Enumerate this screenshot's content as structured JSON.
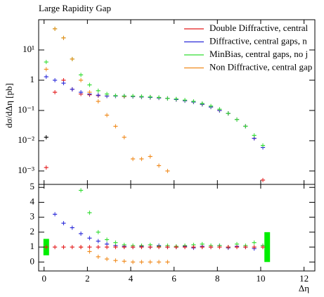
{
  "chart_data": [
    {
      "type": "line",
      "title": "Large Rapidity Gap",
      "ylabel": "dσ/dΔη [pb]",
      "log_y": true,
      "xlim": [
        -0.25,
        12.5
      ],
      "ylim": [
        0.00036,
        100
      ],
      "yticks": [
        {
          "value": 0.001,
          "label": "10⁻³"
        },
        {
          "value": 0.01,
          "label": "10⁻²"
        },
        {
          "value": 0.1,
          "label": "10⁻¹"
        },
        1,
        {
          "value": 10,
          "label": "10¹"
        }
      ],
      "legend": "top-right",
      "x": [
        0.1,
        0.5,
        0.9,
        1.3,
        1.7,
        2.1,
        2.5,
        2.9,
        3.3,
        3.7,
        4.1,
        4.5,
        4.9,
        5.3,
        5.7,
        6.1,
        6.5,
        6.9,
        7.3,
        7.7,
        8.1,
        8.5,
        8.9,
        9.3,
        9.7,
        10.1
      ],
      "series": [
        {
          "name": "Double Diffractive, central",
          "color": "#e41a1c",
          "values": [
            0.0013,
            0.4,
            1.0,
            0.5,
            0.35,
            0.33,
            0.31,
            0.3,
            0.3,
            0.29,
            0.29,
            0.28,
            0.27,
            0.26,
            0.25,
            0.23,
            0.21,
            0.19,
            0.16,
            0.13,
            0.1,
            0.08,
            0.05,
            0.03,
            0.012,
            0.0005
          ]
        },
        {
          "name": "Diffractive, central gaps, n",
          "color": "#2b2bd9",
          "values": [
            1.3,
            1.0,
            0.8,
            0.5,
            0.4,
            0.35,
            0.32,
            0.3,
            0.3,
            0.3,
            0.29,
            0.28,
            0.27,
            0.26,
            0.25,
            0.23,
            0.21,
            0.19,
            0.16,
            0.13,
            0.1,
            0.08,
            0.05,
            0.03,
            0.012,
            0.006
          ]
        },
        {
          "name": "MinBias, central gaps, no j",
          "color": "#33dd33",
          "values": [
            4,
            50,
            25,
            5,
            1.5,
            0.7,
            0.45,
            0.35,
            0.31,
            0.3,
            0.3,
            0.29,
            0.28,
            0.27,
            0.25,
            0.24,
            0.22,
            0.2,
            0.17,
            0.14,
            0.11,
            0.08,
            0.05,
            0.03,
            0.015,
            0.007
          ]
        },
        {
          "name": "Non Diffractive, central gap",
          "color": "#f08a1c",
          "values": [
            2.3,
            50,
            25,
            5,
            1.0,
            0.4,
            0.2,
            0.07,
            0.03,
            0.013,
            0.0025,
            0.0025,
            0.003,
            0.0015,
            0.001,
            null,
            null,
            null,
            null,
            null,
            null,
            null,
            null,
            null,
            null,
            null
          ]
        },
        {
          "color": "#000000",
          "values": [
            0.013,
            null,
            null,
            null,
            null,
            null,
            null,
            null,
            null,
            null,
            null,
            null,
            null,
            null,
            null,
            null,
            null,
            null,
            null,
            null,
            null,
            null,
            null,
            null,
            null,
            null
          ]
        }
      ]
    },
    {
      "type": "line",
      "xlabel": "Δη",
      "xlim": [
        -0.25,
        12.5
      ],
      "ylim": [
        -0.6,
        5.2
      ],
      "xticks": [
        0,
        2,
        4,
        6,
        8,
        10,
        12
      ],
      "yticks": [
        0,
        1,
        2,
        3,
        4,
        5
      ],
      "x": [
        0.1,
        0.5,
        0.9,
        1.3,
        1.7,
        2.1,
        2.5,
        2.9,
        3.3,
        3.7,
        4.1,
        4.5,
        4.9,
        5.3,
        5.7,
        6.1,
        6.5,
        6.9,
        7.3,
        7.7,
        8.1,
        8.5,
        8.9,
        9.3,
        9.7,
        10.1
      ],
      "band": {
        "color": "#00ee00",
        "x": [
          0.1,
          10.3
        ],
        "lower": [
          0.45,
          0
        ],
        "upper": [
          1.55,
          2
        ]
      },
      "series": [
        {
          "color": "#2b2bd9",
          "values": [
            null,
            3.2,
            2.6,
            2.3,
            1.9,
            1.6,
            1.4,
            1.2,
            1.1,
            1.05,
            1.0,
            1.05,
            1.0,
            1.1,
            1.0,
            1.0,
            1.05,
            0.95,
            1.05,
            1.0,
            1.1,
            0.95,
            1.05,
            1.0,
            0.9,
            1.1
          ]
        },
        {
          "color": "#33dd33",
          "values": [
            null,
            null,
            null,
            null,
            4.8,
            3.3,
            2.0,
            1.5,
            1.3,
            1.15,
            1.1,
            1.1,
            1.15,
            1.05,
            1.1,
            1.05,
            1.1,
            1.15,
            1.2,
            1.1,
            1.1,
            1.0,
            1.2,
            1.1,
            1.3,
            1.1
          ]
        },
        {
          "color": "#f08a1c",
          "values": [
            null,
            null,
            null,
            null,
            1.0,
            0.7,
            0.35,
            0.2,
            0.1,
            0.05,
            0.0,
            0.0,
            0.0,
            0.0,
            0.0,
            null,
            null,
            null,
            null,
            null,
            null,
            null,
            null,
            null,
            null,
            null
          ]
        },
        {
          "color": "#e41a1c",
          "values": [
            1,
            1,
            1,
            1,
            1,
            1,
            1,
            1,
            1,
            1,
            1,
            1,
            1,
            1,
            1,
            1,
            1,
            1,
            1,
            1,
            1,
            1,
            1,
            1,
            1,
            1
          ]
        }
      ]
    }
  ]
}
